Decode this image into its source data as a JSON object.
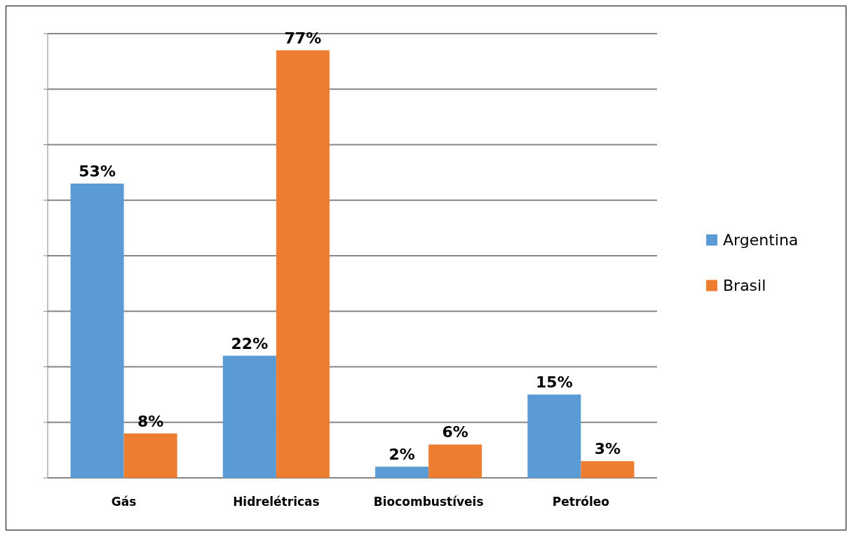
{
  "chart_data": {
    "type": "bar",
    "categories": [
      "Gás",
      "Hidrelétricas",
      "Biocombustíveis",
      "Petróleo"
    ],
    "series": [
      {
        "name": "Argentina",
        "color": "#5b9bd5",
        "values": [
          53,
          22,
          2,
          15
        ],
        "value_labels": [
          "53%",
          "22%",
          "2%",
          "15%"
        ]
      },
      {
        "name": "Brasil",
        "color": "#ed7d31",
        "values": [
          8,
          77,
          6,
          3
        ],
        "value_labels": [
          "8%",
          "77%",
          "6%",
          "3%"
        ]
      }
    ],
    "ylim": [
      0,
      80
    ],
    "yticks": [
      {
        "value": 0,
        "label": null
      },
      {
        "value": 10,
        "label": null
      },
      {
        "value": 20,
        "label": null
      },
      {
        "value": 30,
        "label": null
      },
      {
        "value": 40,
        "label": null
      },
      {
        "value": 50,
        "label": null
      },
      {
        "value": 60,
        "label": null
      },
      {
        "value": 70,
        "label": null
      },
      {
        "value": 80,
        "label": null
      }
    ],
    "grid": true,
    "legend": "right"
  }
}
